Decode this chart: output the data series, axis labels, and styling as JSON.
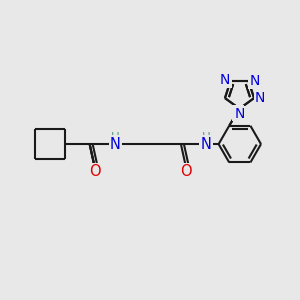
{
  "bg_color": "#e8e8e8",
  "bond_color": "#1a1a1a",
  "bond_width": 1.5,
  "atom_colors": {
    "N": "#0000dd",
    "O": "#dd0000",
    "H": "#5a9a7a",
    "C": "#1a1a1a"
  },
  "figsize": [
    3.0,
    3.0
  ],
  "dpi": 100
}
